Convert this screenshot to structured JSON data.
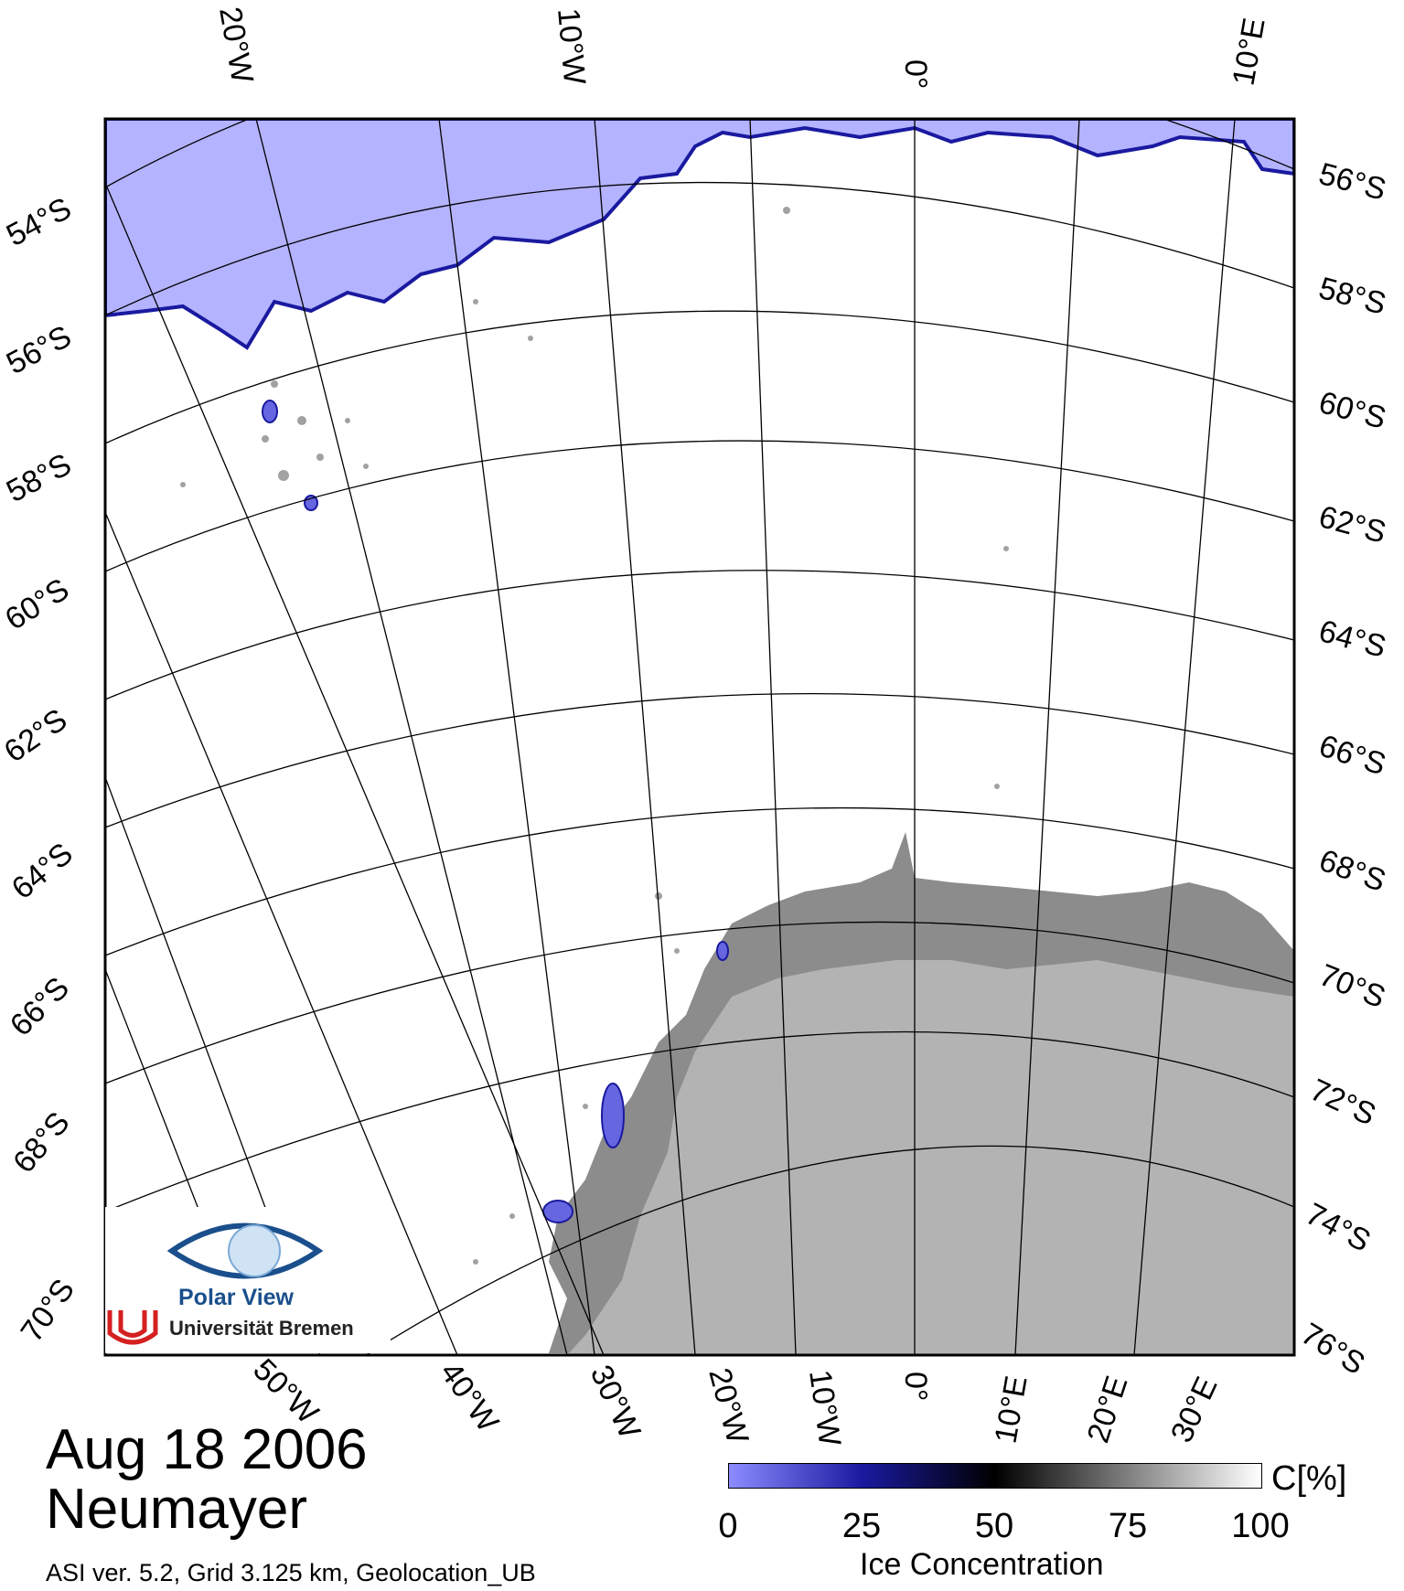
{
  "map": {
    "title_date": "Aug 18 2006",
    "station": "Neumayer",
    "credit": "ASI ver. 5.2,  Grid 3.125 km, Geolocation_UB",
    "top_lon_labels": [
      "20°W",
      "10°W",
      "0°",
      "10°E"
    ],
    "right_lat_labels": [
      "56°S",
      "58°S",
      "60°S",
      "62°S",
      "64°S",
      "66°S",
      "68°S",
      "70°S",
      "72°S",
      "74°S",
      "76°S"
    ],
    "left_lat_labels": [
      "54°S",
      "56°S",
      "58°S",
      "60°S",
      "62°S",
      "64°S",
      "66°S",
      "68°S",
      "70°S"
    ],
    "bottom_lon_labels": [
      "50°W",
      "40°W",
      "30°W",
      "20°W",
      "10°W",
      "0°",
      "10°E",
      "20°E",
      "30°E"
    ],
    "colors": {
      "open_water": "#b3b3ff",
      "ice_edge": "#1a1aa0",
      "sea_ice": "#ffffff",
      "land_ice_shelf": "#8c8c8c",
      "land": "#b3b3b3"
    }
  },
  "legend": {
    "title": "Ice Concentration",
    "unit": "C[%]",
    "ticks": [
      "0",
      "25",
      "50",
      "75",
      "100"
    ]
  },
  "logo": {
    "name": "Polar View",
    "institution": "Universität Bremen"
  }
}
